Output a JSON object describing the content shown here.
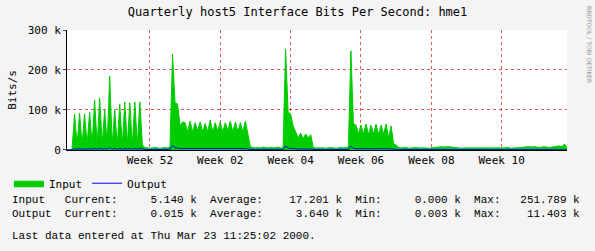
{
  "chart_data": {
    "type": "line",
    "title": "Quarterly host5 Interface Bits Per Second: hme1",
    "y_label": "Bits/s",
    "annotations": [
      "RRDTOOL / TOBI OETIKER",
      "Input   Current:     5.140 k  Average:    17.201 k  Min:     0.000 k  Max:   251.789 k",
      "Output  Current:     0.015 k  Average:     3.640 k  Min:     0.003 k  Max:    11.403 k",
      "Last data entered at Thu Mar 23 11:25:02 2000."
    ],
    "categories": [
      null,
      null,
      null,
      null,
      null,
      null,
      null,
      null,
      null,
      null,
      null,
      null,
      null,
      null,
      null,
      null,
      null,
      null,
      null,
      null,
      null,
      null,
      null,
      null,
      null,
      null,
      null,
      null,
      null,
      null,
      null,
      null,
      null,
      "Week 52",
      null,
      null,
      null,
      null,
      null,
      null,
      null,
      null,
      null,
      null,
      null,
      null,
      null,
      null,
      null,
      null,
      null,
      null,
      null,
      null,
      null,
      null,
      null,
      null,
      null,
      null,
      null,
      "Week 02",
      null,
      null,
      null,
      null,
      null,
      null,
      null,
      null,
      null,
      null,
      null,
      null,
      null,
      null,
      null,
      null,
      null,
      null,
      null,
      null,
      null,
      null,
      null,
      null,
      null,
      null,
      null,
      "Week 04",
      null,
      null,
      null,
      null,
      null,
      null,
      null,
      null,
      null,
      null,
      null,
      null,
      null,
      null,
      null,
      null,
      null,
      null,
      null,
      null,
      null,
      null,
      null,
      null,
      null,
      null,
      null,
      "Week 06",
      null,
      null,
      null,
      null,
      null,
      null,
      null,
      null,
      null,
      null,
      null,
      null,
      null,
      null,
      null,
      null,
      null,
      null,
      null,
      null,
      null,
      null,
      null,
      null,
      null,
      null,
      null,
      "Week 08",
      null,
      null,
      null,
      null,
      null,
      null,
      null,
      null,
      null,
      null,
      null,
      null,
      null,
      null,
      null,
      null,
      null,
      null,
      null,
      null,
      null,
      null,
      null,
      null,
      null,
      null,
      null,
      "Week 10",
      null,
      null,
      null,
      null,
      null,
      null,
      null,
      null,
      null,
      null,
      null,
      null,
      null,
      null,
      null,
      null,
      null,
      null,
      null,
      null,
      null,
      null,
      null,
      null,
      null,
      null
    ],
    "series": [
      {
        "name": "Input",
        "color": "#00cc00",
        "type": "area",
        "values": [
          0,
          0,
          0,
          90000,
          12000,
          92000,
          12000,
          90000,
          12000,
          95000,
          12000,
          125000,
          12000,
          130000,
          15000,
          100000,
          12000,
          185000,
          12000,
          100000,
          12000,
          115000,
          12000,
          120000,
          12000,
          118000,
          12000,
          120000,
          12000,
          120000,
          12000,
          6000,
          5000,
          4000,
          5000,
          6000,
          5000,
          4000,
          5000,
          6000,
          5000,
          8000,
          240000,
          118000,
          115000,
          60000,
          70000,
          68000,
          45000,
          72000,
          45000,
          68000,
          48000,
          70000,
          45000,
          66000,
          46000,
          75000,
          45000,
          68000,
          47000,
          70000,
          45000,
          68000,
          48000,
          72000,
          45000,
          70000,
          46000,
          68000,
          45000,
          72000,
          40000,
          8000,
          6000,
          5000,
          6000,
          5000,
          7000,
          6000,
          5000,
          6000,
          5000,
          6000,
          7000,
          5000,
          6000,
          251789,
          95000,
          90000,
          60000,
          45000,
          30000,
          42000,
          28000,
          40000,
          30000,
          38000,
          6000,
          5000,
          5000,
          6000,
          5000,
          4000,
          5000,
          6000,
          5000,
          4000,
          5000,
          6000,
          5000,
          6000,
          7000,
          248000,
          65000,
          62000,
          40000,
          62000,
          40000,
          65000,
          38000,
          62000,
          40000,
          64000,
          38000,
          62000,
          40000,
          65000,
          30000,
          60000,
          15000,
          12000,
          6000,
          5000,
          5000,
          6000,
          4000,
          5000,
          5000,
          6000,
          5000,
          5000,
          6000,
          5000,
          4000,
          5000,
          6000,
          7000,
          8000,
          8000,
          7000,
          8000,
          8000,
          7000,
          6000,
          5000,
          5000,
          4000,
          5000,
          5000,
          4000,
          5000,
          5000,
          4000,
          5000,
          5000,
          4000,
          5000,
          5000,
          4000,
          5000,
          5000,
          4000,
          5000,
          5000,
          6000,
          5000,
          4000,
          5000,
          5000,
          5000,
          6000,
          7000,
          8000,
          8000,
          7000,
          8000,
          7000,
          6000,
          7000,
          8000,
          7000,
          6000,
          7000,
          8000,
          9000,
          10000,
          8000,
          15000,
          5140
        ]
      },
      {
        "name": "Output",
        "color": "#0000ff",
        "type": "line",
        "values": [
          3,
          3,
          3,
          3000,
          1500,
          3000,
          1500,
          3000,
          1500,
          3200,
          1500,
          4000,
          1500,
          4500,
          1500,
          3500,
          1500,
          6000,
          1500,
          3500,
          1500,
          4000,
          1500,
          4000,
          1500,
          4000,
          1500,
          4000,
          1500,
          4000,
          1500,
          800,
          700,
          600,
          700,
          800,
          700,
          600,
          700,
          800,
          700,
          1000,
          11403,
          5000,
          5000,
          3000,
          3500,
          3500,
          2500,
          3500,
          2500,
          3500,
          2500,
          3500,
          2500,
          3500,
          2500,
          4000,
          2500,
          3500,
          2500,
          3500,
          2500,
          3500,
          2500,
          3500,
          2500,
          3500,
          2500,
          3500,
          2500,
          3500,
          2000,
          1000,
          800,
          700,
          800,
          700,
          900,
          800,
          700,
          800,
          700,
          800,
          900,
          700,
          800,
          10000,
          4000,
          4000,
          3000,
          2500,
          2000,
          2500,
          2000,
          2500,
          2000,
          2500,
          800,
          700,
          700,
          800,
          700,
          600,
          700,
          800,
          700,
          600,
          700,
          800,
          700,
          800,
          900,
          9500,
          3500,
          3500,
          2500,
          3500,
          2500,
          3500,
          2500,
          3500,
          2500,
          3500,
          2500,
          3500,
          2500,
          3500,
          2000,
          3000,
          1200,
          1000,
          600,
          500,
          500,
          600,
          400,
          500,
          500,
          600,
          500,
          500,
          600,
          500,
          400,
          500,
          600,
          700,
          800,
          800,
          700,
          800,
          800,
          700,
          600,
          500,
          500,
          400,
          500,
          500,
          400,
          500,
          500,
          400,
          500,
          500,
          400,
          500,
          500,
          400,
          500,
          500,
          400,
          500,
          500,
          600,
          500,
          400,
          500,
          500,
          500,
          600,
          700,
          800,
          800,
          700,
          800,
          700,
          600,
          700,
          800,
          700,
          600,
          700,
          800,
          900,
          1000,
          800,
          1500,
          15
        ]
      }
    ],
    "ylim": [
      0,
      300000
    ],
    "yticks": [
      0,
      {
        "value": 100000,
        "label": "100 k"
      },
      {
        "value": 200000,
        "label": "200 k"
      },
      {
        "value": 300000,
        "label": "300 k"
      }
    ],
    "grid": true,
    "legend": "bottom left"
  }
}
